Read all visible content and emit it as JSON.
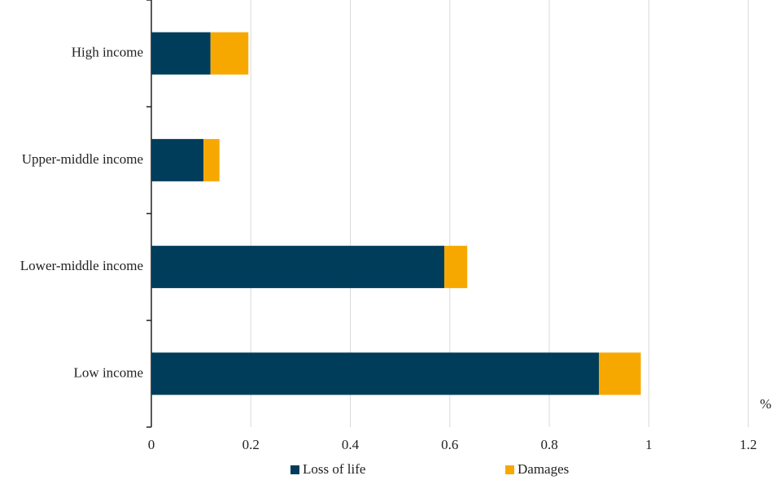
{
  "chart_data": {
    "type": "stacked_barh",
    "categories": [
      "High income",
      "Upper-middle income",
      "Lower-middle income",
      "Low income"
    ],
    "series": [
      {
        "name": "Loss of life",
        "color": "#003d5b",
        "values": [
          0.119,
          0.105,
          0.589,
          0.9
        ]
      },
      {
        "name": "Damages",
        "color": "#f7a800",
        "values": [
          0.076,
          0.032,
          0.046,
          0.084
        ]
      }
    ],
    "x_label": "%",
    "xlim": [
      0,
      1.2
    ],
    "xticks": [
      0,
      0.2,
      0.4,
      0.6,
      0.8,
      1,
      1.2
    ],
    "grid": true
  }
}
